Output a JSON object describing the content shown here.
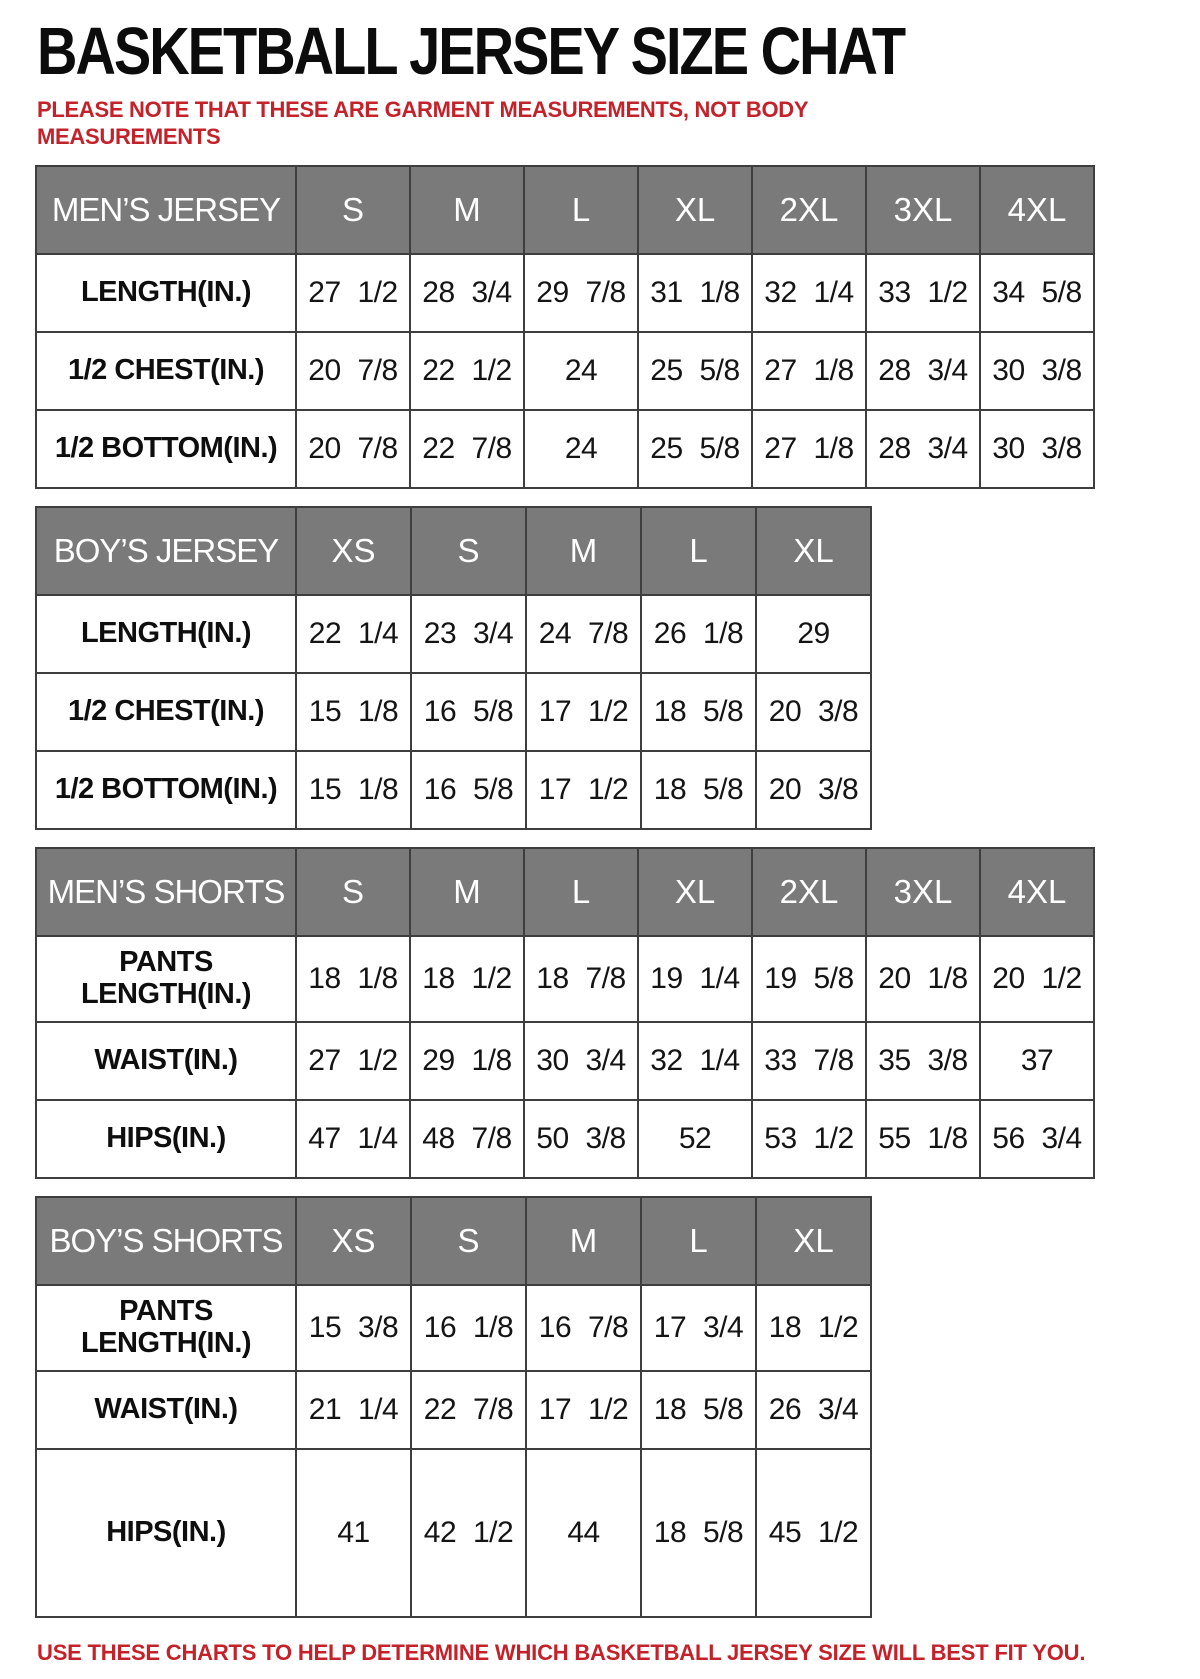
{
  "page": {
    "title": "BASKETBALL JERSEY SIZE CHAT",
    "note": "PLEASE NOTE THAT THESE ARE GARMENT MEASUREMENTS, NOT BODY MEASUREMENTS",
    "footer": "USE THESE CHARTS TO HELP DETERMINE WHICH BASKETBALL JERSEY SIZE WILL BEST FIT YOU."
  },
  "colors": {
    "header_bg": "#7a7a7a",
    "header_text": "#ffffff",
    "note_red": "#c4222a",
    "border": "#3e3e3e"
  },
  "tables": [
    {
      "label": "MEN’S JERSEY",
      "sizes": [
        "S",
        "M",
        "L",
        "XL",
        "2XL",
        "3XL",
        "4XL"
      ],
      "rows": [
        {
          "label": "LENGTH(IN.)",
          "values": [
            "27 1/2",
            "28 3/4",
            "29 7/8",
            "31 1/8",
            "32 1/4",
            "33 1/2",
            "34 5/8"
          ]
        },
        {
          "label": "1/2 CHEST(IN.)",
          "values": [
            "20 7/8",
            "22 1/2",
            "24",
            "25 5/8",
            "27 1/8",
            "28 3/4",
            "30 3/8"
          ]
        },
        {
          "label": "1/2 BOTTOM(IN.)",
          "values": [
            "20 7/8",
            "22 7/8",
            "24",
            "25 5/8",
            "27 1/8",
            "28 3/4",
            "30 3/8"
          ]
        }
      ]
    },
    {
      "label": "BOY’S JERSEY",
      "sizes": [
        "XS",
        "S",
        "M",
        "L",
        "XL"
      ],
      "rows": [
        {
          "label": "LENGTH(IN.)",
          "values": [
            "22 1/4",
            "23 3/4",
            "24 7/8",
            "26 1/8",
            "29"
          ]
        },
        {
          "label": "1/2 CHEST(IN.)",
          "values": [
            "15 1/8",
            "16 5/8",
            "17 1/2",
            "18 5/8",
            "20 3/8"
          ]
        },
        {
          "label": "1/2 BOTTOM(IN.)",
          "values": [
            "15 1/8",
            "16 5/8",
            "17 1/2",
            "18 5/8",
            "20 3/8"
          ]
        }
      ]
    },
    {
      "label": "MEN’S SHORTS",
      "sizes": [
        "S",
        "M",
        "L",
        "XL",
        "2XL",
        "3XL",
        "4XL"
      ],
      "rows": [
        {
          "label": "PANTS LENGTH(IN.)",
          "values": [
            "18 1/8",
            "18 1/2",
            "18 7/8",
            "19 1/4",
            "19 5/8",
            "20 1/8",
            "20 1/2"
          ]
        },
        {
          "label": "WAIST(IN.)",
          "values": [
            "27 1/2",
            "29 1/8",
            "30 3/4",
            "32 1/4",
            "33 7/8",
            "35 3/8",
            "37"
          ]
        },
        {
          "label": "HIPS(IN.)",
          "values": [
            "47 1/4",
            "48 7/8",
            "50 3/8",
            "52",
            "53 1/2",
            "55 1/8",
            "56 3/4"
          ]
        }
      ]
    },
    {
      "label": "BOY’S SHORTS",
      "sizes": [
        "XS",
        "S",
        "M",
        "L",
        "XL"
      ],
      "rows": [
        {
          "label": "PANTS LENGTH(IN.)",
          "values": [
            "15 3/8",
            "16 1/8",
            "16 7/8",
            "17 3/4",
            "18 1/2"
          ]
        },
        {
          "label": "WAIST(IN.)",
          "values": [
            "21 1/4",
            "22 7/8",
            "17 1/2",
            "18 5/8",
            "26 3/4"
          ]
        },
        {
          "label": "HIPS(IN.)",
          "values": [
            "41",
            "42 1/2",
            "44",
            "18 5/8",
            "45 1/2"
          ]
        }
      ]
    }
  ]
}
